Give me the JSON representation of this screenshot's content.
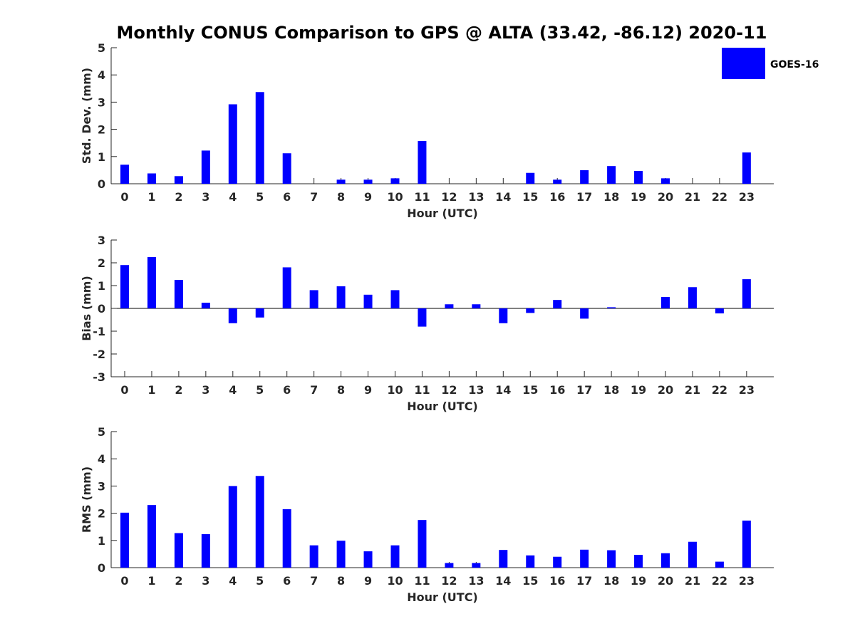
{
  "title": "Monthly CONUS Comparison to GPS @ ALTA (33.42, -86.12) 2020-11",
  "legend": {
    "label": "GOES-16",
    "color": "#0000ff"
  },
  "chart_data": [
    {
      "type": "bar",
      "series_name": "GOES-16",
      "color": "#0000ff",
      "xlabel": "Hour (UTC)",
      "ylabel": "Std. Dev. (mm)",
      "ylim": [
        0,
        5
      ],
      "yticks": [
        0,
        1,
        2,
        3,
        4,
        5
      ],
      "categories": [
        "0",
        "1",
        "2",
        "3",
        "4",
        "5",
        "6",
        "7",
        "8",
        "9",
        "10",
        "11",
        "12",
        "13",
        "14",
        "15",
        "16",
        "17",
        "18",
        "19",
        "20",
        "21",
        "22",
        "23"
      ],
      "values": [
        0.7,
        0.38,
        0.28,
        1.22,
        2.92,
        3.37,
        1.12,
        0,
        0.15,
        0.15,
        0.2,
        1.57,
        0,
        0,
        0,
        0.4,
        0.15,
        0.5,
        0.65,
        0.47,
        0.2,
        0,
        0,
        1.15
      ]
    },
    {
      "type": "bar",
      "series_name": "GOES-16",
      "color": "#0000ff",
      "xlabel": "Hour (UTC)",
      "ylabel": "Bias (mm)",
      "ylim": [
        -3,
        3
      ],
      "yticks": [
        -3,
        -2,
        -1,
        0,
        1,
        2,
        3
      ],
      "categories": [
        "0",
        "1",
        "2",
        "3",
        "4",
        "5",
        "6",
        "7",
        "8",
        "9",
        "10",
        "11",
        "12",
        "13",
        "14",
        "15",
        "16",
        "17",
        "18",
        "19",
        "20",
        "21",
        "22",
        "23"
      ],
      "values": [
        1.9,
        2.25,
        1.25,
        0.25,
        -0.65,
        -0.4,
        1.8,
        0.8,
        0.97,
        0.6,
        0.8,
        -0.8,
        0.18,
        0.18,
        -0.65,
        -0.2,
        0.37,
        -0.45,
        0.05,
        0,
        0.5,
        0.93,
        -0.22,
        1.28
      ]
    },
    {
      "type": "bar",
      "series_name": "GOES-16",
      "color": "#0000ff",
      "xlabel": "Hour (UTC)",
      "ylabel": "RMS (mm)",
      "ylim": [
        0,
        5
      ],
      "yticks": [
        0,
        1,
        2,
        3,
        4,
        5
      ],
      "categories": [
        "0",
        "1",
        "2",
        "3",
        "4",
        "5",
        "6",
        "7",
        "8",
        "9",
        "10",
        "11",
        "12",
        "13",
        "14",
        "15",
        "16",
        "17",
        "18",
        "19",
        "20",
        "21",
        "22",
        "23"
      ],
      "values": [
        2.02,
        2.3,
        1.27,
        1.23,
        3.0,
        3.37,
        2.15,
        0.82,
        0.99,
        0.6,
        0.82,
        1.75,
        0.17,
        0.17,
        0.65,
        0.45,
        0.4,
        0.66,
        0.64,
        0.47,
        0.53,
        0.95,
        0.22,
        1.73
      ]
    }
  ]
}
